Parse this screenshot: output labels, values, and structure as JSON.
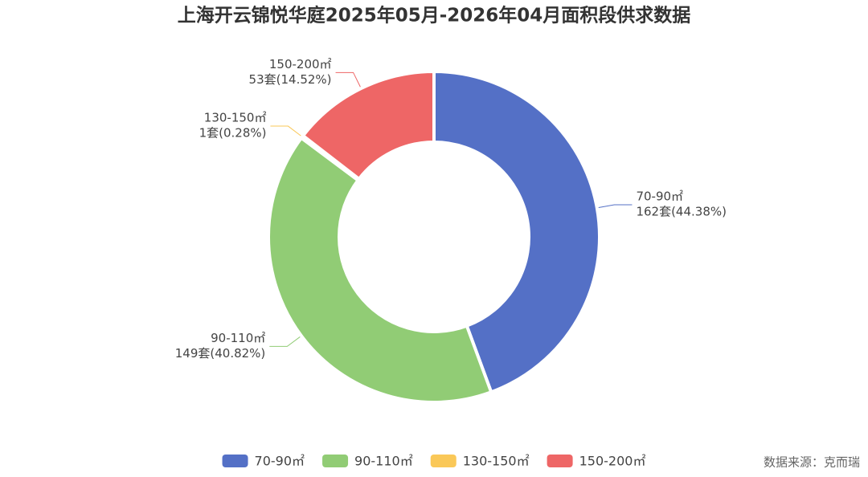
{
  "chart_data": {
    "type": "donut",
    "title": "上海开云锦悦华庭2025年05月-2026年04月面积段供求数据",
    "categories": [
      "70-90㎡",
      "90-110㎡",
      "130-150㎡",
      "150-200㎡"
    ],
    "values": [
      162,
      149,
      1,
      53
    ],
    "value_labels": [
      "162套(44.38%)",
      "149套(40.82%)",
      "1套(0.28%)",
      "53套(14.52%)"
    ],
    "colors": [
      "#5470c6",
      "#91cc75",
      "#fac858",
      "#ee6666"
    ],
    "legend": "bottom",
    "source": "数据来源：克而瑞"
  }
}
